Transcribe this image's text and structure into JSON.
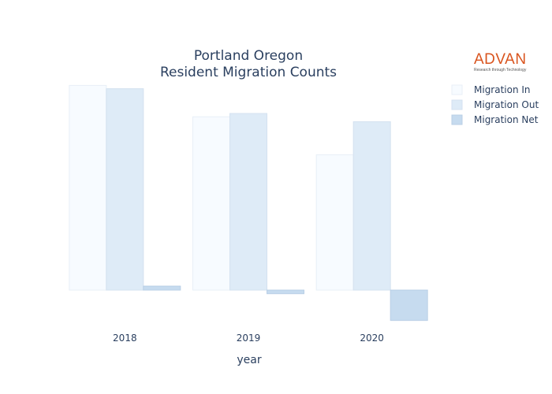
{
  "logo": {
    "word": "ADVAN",
    "tagline": "Research through Technology"
  },
  "chart_data": {
    "type": "bar",
    "title": [
      "Portland Oregon",
      "Resident Migration Counts"
    ],
    "xlabel": "year",
    "ylabel": "",
    "categories": [
      "2018",
      "2019",
      "2020"
    ],
    "series": [
      {
        "name": "Migration In",
        "values": [
          62000,
          52500,
          41000
        ],
        "color": "#f7fbff",
        "stroke": "#e8eff7"
      },
      {
        "name": "Migration Out",
        "values": [
          61000,
          53500,
          51000
        ],
        "color": "#deebf7",
        "stroke": "#d4e2f0"
      },
      {
        "name": "Migration Net",
        "values": [
          1200,
          -1100,
          -9200
        ],
        "color": "#c6dbef",
        "stroke": "#b9cfe6"
      }
    ],
    "ylim": [
      -10000,
      64000
    ],
    "grid": false,
    "legend": "top-right"
  }
}
